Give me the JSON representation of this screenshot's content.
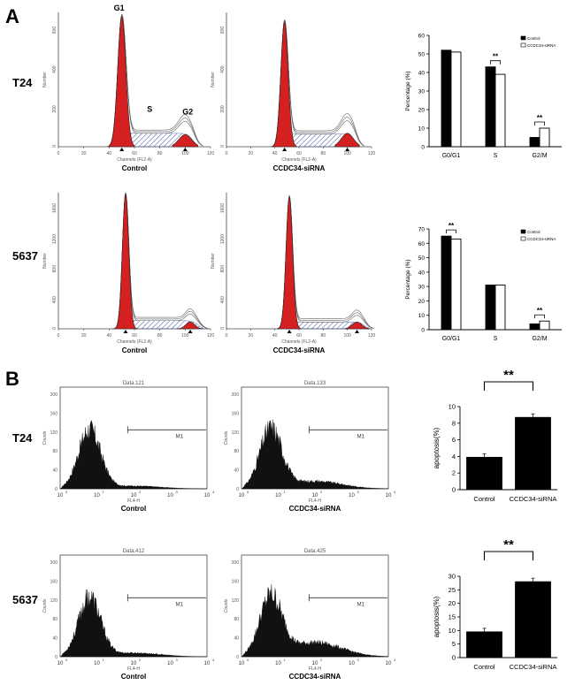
{
  "panels": {
    "A": "A",
    "B": "B"
  },
  "rows": {
    "t24": "T24",
    "c5637": "5637"
  },
  "histo_a": {
    "xlabel": "Channels (FL2-A)",
    "ylabel": "Number",
    "xticks": [
      "0",
      "20",
      "40",
      "60",
      "80",
      "100",
      "120"
    ],
    "yticks_t24": [
      "0",
      "200",
      "400",
      "600"
    ],
    "yticks_5637": [
      "0",
      "400",
      "800",
      "1200",
      "1600"
    ],
    "peaks": {
      "g1": "G1",
      "s": "S",
      "g2": "G2"
    }
  },
  "histo_b": {
    "ylabel": "Counts",
    "xlabel": "FL4-H",
    "gate": "M1",
    "yticks": [
      "0",
      "40",
      "80",
      "120",
      "160",
      "200"
    ],
    "xticks": [
      "10",
      "10",
      "10",
      "10",
      "10"
    ],
    "xexp": [
      "0",
      "1",
      "2",
      "3",
      "4"
    ],
    "titles": [
      "Data.121",
      "Data.133",
      "Data.412",
      "Data.425"
    ]
  },
  "captions": {
    "control": "Control",
    "sirna": "CCDC34-siRNA"
  },
  "sig": "**",
  "colors": {
    "fill_red": "#d42020",
    "bar_black": "#000000",
    "bar_white": "#ffffff",
    "hatch": "#3b4fa0"
  },
  "chart_data": [
    {
      "type": "bar",
      "id": "t24_cycle",
      "ylabel": "Percentage (%)",
      "categories": [
        "G0/G1",
        "S",
        "G2/M"
      ],
      "series": [
        {
          "name": "Control",
          "values": [
            52,
            43,
            5
          ]
        },
        {
          "name": "CCDC34-siRNA",
          "values": [
            51,
            39,
            10
          ]
        }
      ],
      "ylim": [
        0,
        60
      ],
      "yticks": [
        0,
        10,
        20,
        30,
        40,
        50,
        60
      ],
      "sig": [
        {
          "index": 1,
          "label": "**"
        },
        {
          "index": 2,
          "label": "**"
        }
      ]
    },
    {
      "type": "bar",
      "id": "c5637_cycle",
      "ylabel": "Percentage (%)",
      "categories": [
        "G0/G1",
        "S",
        "G2/M"
      ],
      "series": [
        {
          "name": "Control",
          "values": [
            65,
            31,
            4
          ]
        },
        {
          "name": "CCDC34-siRNA",
          "values": [
            63,
            31,
            6
          ]
        }
      ],
      "ylim": [
        0,
        70
      ],
      "yticks": [
        0,
        10,
        20,
        30,
        40,
        50,
        60,
        70
      ],
      "sig": [
        {
          "index": 0,
          "label": "**"
        },
        {
          "index": 2,
          "label": "**"
        }
      ]
    },
    {
      "type": "bar",
      "id": "t24_apop",
      "ylabel": "apoptosis(%)",
      "categories": [
        "Control",
        "CCDC34-siRNA"
      ],
      "values": [
        3.9,
        8.7
      ],
      "ylim": [
        0,
        10
      ],
      "yticks": [
        0,
        2,
        4,
        6,
        8,
        10
      ],
      "sig": "**"
    },
    {
      "type": "bar",
      "id": "c5637_apop",
      "ylabel": "apoptosis(%)",
      "categories": [
        "Control",
        "CCDC34-siRNA"
      ],
      "values": [
        9.5,
        28.0
      ],
      "ylim": [
        0,
        30
      ],
      "yticks": [
        0,
        5,
        10,
        15,
        20,
        25,
        30
      ],
      "sig": "**"
    }
  ]
}
